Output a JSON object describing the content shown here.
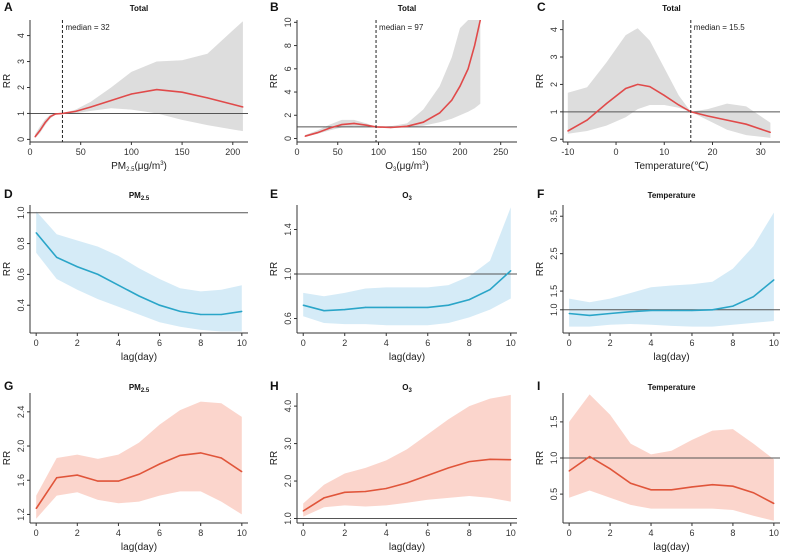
{
  "colors": {
    "red_line": "#e04a4a",
    "grey_band": "#dddddd",
    "blue_line": "#2aa5c8",
    "blue_band": "#d5ebf7",
    "orange_line": "#e0553a",
    "orange_band": "#fbd5cc",
    "ref": "#555555"
  },
  "chart_data": [
    {
      "id": "A",
      "letter": "A",
      "title": "Total",
      "type": "line",
      "xlabel_main": "PM",
      "xlabel_sub": "2.5",
      "xlabel_rest": "(μg/m",
      "xlabel_sup": "3",
      "xlabel_end": ")",
      "ylabel": "RR",
      "xlim": [
        0,
        215
      ],
      "ylim": [
        -0.1,
        4.6
      ],
      "xticks": [
        0,
        50,
        100,
        150,
        200
      ],
      "xtick_labels": [
        "0",
        "50",
        "100",
        "150",
        "200"
      ],
      "yticks": [
        0,
        1,
        2,
        3,
        4
      ],
      "ytick_labels": [
        "0",
        "1",
        "2",
        "3",
        "4"
      ],
      "ref": 1,
      "median": 32,
      "median_label": "median = 32",
      "x": [
        5,
        10,
        15,
        20,
        25,
        32,
        45,
        60,
        80,
        100,
        125,
        150,
        175,
        200,
        210
      ],
      "y": [
        0.1,
        0.35,
        0.65,
        0.88,
        0.98,
        1.0,
        1.08,
        1.25,
        1.5,
        1.75,
        1.92,
        1.82,
        1.6,
        1.35,
        1.25
      ],
      "lower": [
        0.05,
        0.25,
        0.55,
        0.8,
        0.95,
        1.0,
        1.0,
        1.1,
        1.2,
        1.15,
        1.0,
        0.75,
        0.55,
        0.38,
        0.32
      ],
      "upper": [
        0.2,
        0.5,
        0.78,
        0.95,
        1.01,
        1.0,
        1.15,
        1.45,
        2.0,
        2.6,
        3.0,
        3.05,
        3.3,
        4.2,
        4.55
      ],
      "band": "grey_band",
      "line": "red_line"
    },
    {
      "id": "B",
      "letter": "B",
      "title": "Total",
      "type": "line",
      "xlabel_main": "O",
      "xlabel_sub": "3",
      "xlabel_rest": "(μg/m",
      "xlabel_sup": "3",
      "xlabel_end": ")",
      "ylabel": "RR",
      "xlim": [
        0,
        270
      ],
      "ylim": [
        -0.3,
        10.2
      ],
      "xticks": [
        0,
        50,
        100,
        150,
        200,
        250
      ],
      "xtick_labels": [
        "0",
        "50",
        "100",
        "150",
        "200",
        "250"
      ],
      "yticks": [
        0,
        2,
        4,
        6,
        8,
        10
      ],
      "ytick_labels": [
        "0",
        "2",
        "4",
        "6",
        "8",
        "10"
      ],
      "ref": 1,
      "median": 97,
      "median_label": "median = 97",
      "x": [
        10,
        25,
        40,
        55,
        70,
        85,
        97,
        115,
        135,
        155,
        175,
        190,
        200,
        210,
        218,
        225
      ],
      "y": [
        0.2,
        0.5,
        0.9,
        1.2,
        1.3,
        1.15,
        1.0,
        0.95,
        1.05,
        1.4,
        2.2,
        3.3,
        4.5,
        6.0,
        8.0,
        10.2
      ],
      "lower": [
        0.15,
        0.4,
        0.7,
        0.95,
        1.05,
        1.0,
        1.0,
        0.9,
        0.95,
        1.1,
        1.4,
        1.7,
        2.0,
        2.3,
        2.6,
        3.0
      ],
      "upper": [
        0.3,
        0.7,
        1.2,
        1.6,
        1.6,
        1.3,
        1.0,
        1.05,
        1.3,
        2.5,
        4.5,
        7.0,
        9.5,
        10.2,
        10.2,
        10.2
      ],
      "band": "grey_band",
      "line": "red_line"
    },
    {
      "id": "C",
      "letter": "C",
      "title": "Total",
      "type": "line",
      "xlabel_main": "Temperature(℃)",
      "xlabel_sub": "",
      "xlabel_rest": "",
      "xlabel_sup": "",
      "xlabel_end": "",
      "ylabel": "RR",
      "xlim": [
        -11,
        34
      ],
      "ylim": [
        -0.1,
        4.35
      ],
      "xticks": [
        -10,
        0,
        10,
        20,
        30
      ],
      "xtick_labels": [
        "-10",
        "0",
        "10",
        "20",
        "30"
      ],
      "yticks": [
        0,
        1,
        2,
        3,
        4
      ],
      "ytick_labels": [
        "0",
        "1",
        "2",
        "3",
        "4"
      ],
      "ref": 1,
      "median": 15.5,
      "median_label": "median = 15.5",
      "x": [
        -10,
        -6,
        -2,
        2,
        4.5,
        7,
        10,
        13,
        15.5,
        19,
        23,
        27,
        32
      ],
      "y": [
        0.3,
        0.7,
        1.3,
        1.85,
        2.0,
        1.92,
        1.6,
        1.25,
        1.0,
        0.85,
        0.7,
        0.55,
        0.25
      ],
      "lower": [
        0.2,
        0.3,
        0.5,
        0.8,
        1.1,
        1.25,
        1.25,
        1.15,
        1.0,
        0.7,
        0.35,
        0.15,
        0.05
      ],
      "upper": [
        1.7,
        1.9,
        2.8,
        3.8,
        4.05,
        3.6,
        2.6,
        1.6,
        1.0,
        1.1,
        1.3,
        1.2,
        0.6
      ],
      "band": "grey_band",
      "line": "red_line"
    },
    {
      "id": "D",
      "letter": "D",
      "title_main": "PM",
      "title_sub": "2.5",
      "type": "line",
      "xlabel_main": "lag(day)",
      "ylabel": "RR",
      "xlim": [
        -0.3,
        10.3
      ],
      "ylim": [
        0.22,
        1.05
      ],
      "xticks": [
        0,
        2,
        4,
        6,
        8,
        10
      ],
      "xtick_labels": [
        "0",
        "2",
        "4",
        "6",
        "8",
        "10"
      ],
      "yticks": [
        0.4,
        0.6,
        0.8,
        1.0
      ],
      "ytick_labels": [
        "0.4",
        "0.6",
        "0.8",
        "1.0"
      ],
      "ref": 1,
      "x": [
        0,
        1,
        2,
        3,
        4,
        5,
        6,
        7,
        8,
        9,
        10
      ],
      "y": [
        0.87,
        0.71,
        0.65,
        0.6,
        0.53,
        0.46,
        0.4,
        0.36,
        0.34,
        0.34,
        0.36
      ],
      "lower": [
        0.74,
        0.57,
        0.5,
        0.44,
        0.39,
        0.34,
        0.29,
        0.26,
        0.24,
        0.23,
        0.23
      ],
      "upper": [
        1.01,
        0.86,
        0.82,
        0.78,
        0.72,
        0.64,
        0.57,
        0.51,
        0.49,
        0.5,
        0.53
      ],
      "band": "blue_band",
      "line": "blue_line"
    },
    {
      "id": "E",
      "letter": "E",
      "title_main": "O",
      "title_sub": "3",
      "type": "line",
      "xlabel_main": "lag(day)",
      "ylabel": "RR",
      "xlim": [
        -0.3,
        10.3
      ],
      "ylim": [
        0.47,
        1.62
      ],
      "xticks": [
        0,
        2,
        4,
        6,
        8,
        10
      ],
      "xtick_labels": [
        "0",
        "2",
        "4",
        "6",
        "8",
        "10"
      ],
      "yticks": [
        0.6,
        1.0,
        1.4
      ],
      "ytick_labels": [
        "0.6",
        "1.0",
        "1.4"
      ],
      "ref": 1,
      "x": [
        0,
        1,
        2,
        3,
        4,
        5,
        6,
        7,
        8,
        9,
        10
      ],
      "y": [
        0.72,
        0.67,
        0.68,
        0.7,
        0.7,
        0.7,
        0.7,
        0.72,
        0.77,
        0.86,
        1.03
      ],
      "lower": [
        0.62,
        0.56,
        0.55,
        0.55,
        0.54,
        0.54,
        0.54,
        0.56,
        0.61,
        0.68,
        0.78
      ],
      "upper": [
        0.83,
        0.8,
        0.83,
        0.87,
        0.88,
        0.88,
        0.88,
        0.9,
        0.98,
        1.12,
        1.6
      ],
      "band": "blue_band",
      "line": "blue_line"
    },
    {
      "id": "F",
      "letter": "F",
      "title": "Temperature",
      "type": "line",
      "xlabel_main": "lag(day)",
      "ylabel": "RR",
      "xlim": [
        -0.3,
        10.3
      ],
      "ylim": [
        0.38,
        3.8
      ],
      "xticks": [
        0,
        2,
        4,
        6,
        8,
        10
      ],
      "xtick_labels": [
        "0",
        "2",
        "4",
        "6",
        "8",
        "10"
      ],
      "yticks": [
        1.0,
        1.5,
        2.5,
        3.5
      ],
      "ytick_labels": [
        "1.0",
        "1.5",
        "2.5",
        "3.5"
      ],
      "ref": 1,
      "x": [
        0,
        1,
        2,
        3,
        4,
        5,
        6,
        7,
        8,
        9,
        10
      ],
      "y": [
        0.9,
        0.85,
        0.9,
        0.95,
        0.98,
        0.98,
        0.98,
        1.0,
        1.1,
        1.35,
        1.8
      ],
      "lower": [
        0.55,
        0.55,
        0.6,
        0.62,
        0.6,
        0.57,
        0.55,
        0.55,
        0.6,
        0.65,
        0.7
      ],
      "upper": [
        1.3,
        1.2,
        1.3,
        1.45,
        1.6,
        1.65,
        1.68,
        1.75,
        2.1,
        2.7,
        3.6
      ],
      "band": "blue_band",
      "line": "blue_line"
    },
    {
      "id": "G",
      "letter": "G",
      "title_main": "PM",
      "title_sub": "2.5",
      "type": "line",
      "xlabel_main": "lag(day)",
      "ylabel": "RR",
      "xlim": [
        -0.3,
        10.3
      ],
      "ylim": [
        1.1,
        2.62
      ],
      "xticks": [
        0,
        2,
        4,
        6,
        8,
        10
      ],
      "xtick_labels": [
        "0",
        "2",
        "4",
        "6",
        "8",
        "10"
      ],
      "yticks": [
        1.2,
        1.6,
        2.0,
        2.4
      ],
      "ytick_labels": [
        "1.2",
        "1.6",
        "2.0",
        "2.4"
      ],
      "ref": null,
      "x": [
        0,
        1,
        2,
        3,
        4,
        5,
        6,
        7,
        8,
        9,
        10
      ],
      "y": [
        1.27,
        1.63,
        1.66,
        1.59,
        1.59,
        1.67,
        1.79,
        1.89,
        1.92,
        1.86,
        1.7
      ],
      "lower": [
        1.15,
        1.42,
        1.46,
        1.37,
        1.33,
        1.35,
        1.42,
        1.47,
        1.47,
        1.35,
        1.2
      ],
      "upper": [
        1.42,
        1.86,
        1.9,
        1.85,
        1.9,
        2.04,
        2.25,
        2.42,
        2.52,
        2.5,
        2.34
      ],
      "band": "orange_band",
      "line": "orange_line"
    },
    {
      "id": "H",
      "letter": "H",
      "title_main": "O",
      "title_sub": "3",
      "type": "line",
      "xlabel_main": "lag(day)",
      "ylabel": "RR",
      "xlim": [
        -0.3,
        10.3
      ],
      "ylim": [
        0.88,
        4.35
      ],
      "xticks": [
        0,
        2,
        4,
        6,
        8,
        10
      ],
      "xtick_labels": [
        "0",
        "2",
        "4",
        "6",
        "8",
        "10"
      ],
      "yticks": [
        1.0,
        2.0,
        3.0,
        4.0
      ],
      "ytick_labels": [
        "1.0",
        "2.0",
        "3.0",
        "4.0"
      ],
      "ref": 1,
      "x": [
        0,
        1,
        2,
        3,
        4,
        5,
        6,
        7,
        8,
        9,
        10
      ],
      "y": [
        1.2,
        1.55,
        1.7,
        1.72,
        1.8,
        1.95,
        2.15,
        2.35,
        2.52,
        2.58,
        2.57
      ],
      "lower": [
        1.05,
        1.3,
        1.35,
        1.32,
        1.35,
        1.42,
        1.5,
        1.55,
        1.6,
        1.55,
        1.45
      ],
      "upper": [
        1.4,
        1.9,
        2.2,
        2.35,
        2.55,
        2.85,
        3.25,
        3.65,
        4.0,
        4.2,
        4.3
      ],
      "band": "orange_band",
      "line": "orange_line"
    },
    {
      "id": "I",
      "letter": "I",
      "title": "Temperature",
      "type": "line",
      "xlabel_main": "lag(day)",
      "ylabel": "RR",
      "xlim": [
        -0.3,
        10.3
      ],
      "ylim": [
        0.1,
        1.9
      ],
      "xticks": [
        0,
        2,
        4,
        6,
        8,
        10
      ],
      "xtick_labels": [
        "0",
        "2",
        "4",
        "6",
        "8",
        "10"
      ],
      "yticks": [
        0.5,
        1.0,
        1.5
      ],
      "ytick_labels": [
        "0.5",
        "1.0",
        "1.5"
      ],
      "ref": 1,
      "x": [
        0,
        1,
        2,
        3,
        4,
        5,
        6,
        7,
        8,
        9,
        10
      ],
      "y": [
        0.82,
        1.02,
        0.85,
        0.65,
        0.56,
        0.56,
        0.6,
        0.63,
        0.61,
        0.52,
        0.37
      ],
      "lower": [
        0.45,
        0.55,
        0.45,
        0.35,
        0.3,
        0.3,
        0.3,
        0.3,
        0.28,
        0.2,
        0.13
      ],
      "upper": [
        1.5,
        1.88,
        1.6,
        1.2,
        1.05,
        1.1,
        1.25,
        1.38,
        1.4,
        1.2,
        0.98
      ],
      "band": "orange_band",
      "line": "orange_line"
    }
  ]
}
